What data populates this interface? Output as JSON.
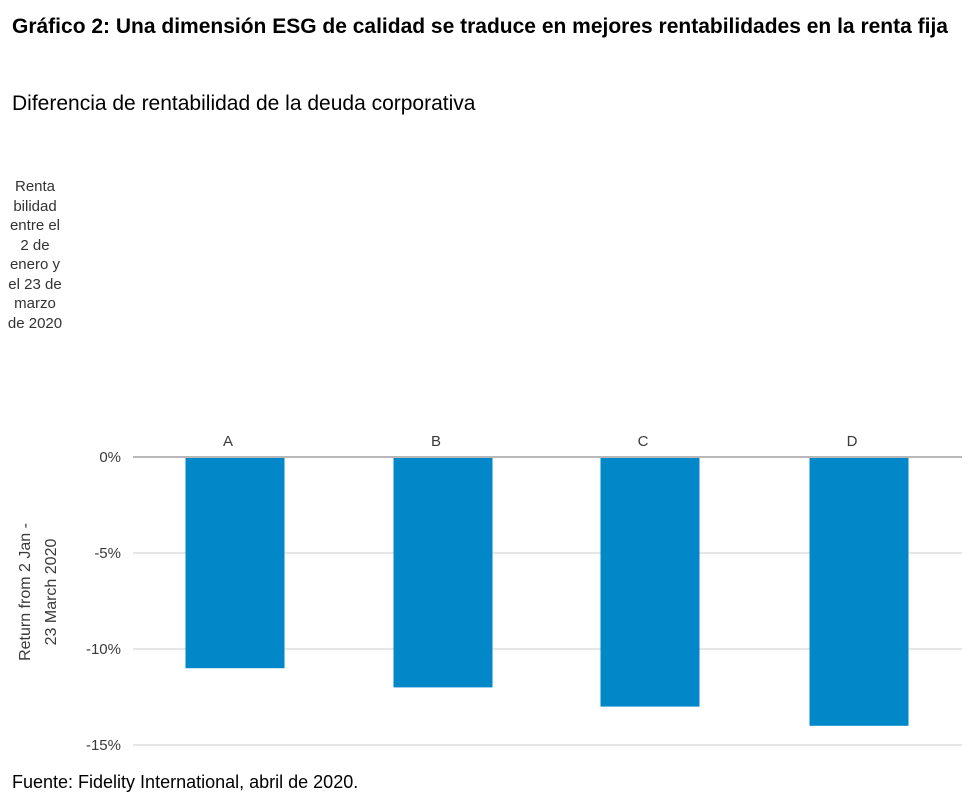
{
  "header": {
    "title": "Gráfico 2: Una dimensión ESG de calidad se traduce en mejores rentabilidades en la renta fija",
    "subtitle": "Diferencia de rentabilidad de la deuda corporativa"
  },
  "side_note": "Renta bilidad entre el 2 de enero y el 23 de marzo de 2020",
  "footer": "Fuente: Fidelity International, abril de 2020.",
  "chart_data": {
    "type": "bar",
    "title": "",
    "xlabel": "",
    "ylabel": "Return from 2 Jan - 23 March 2020",
    "ylabel_lines": [
      "Return from 2 Jan -",
      "23 March 2020"
    ],
    "categories": [
      "A",
      "B",
      "C",
      "D"
    ],
    "values": [
      -11,
      -12,
      -13,
      -14
    ],
    "unit": "%",
    "ylim": [
      -15,
      0
    ],
    "yticks": [
      0,
      -5,
      -10,
      -15
    ],
    "ytick_labels": [
      "0%",
      "-5%",
      "-10%",
      "-15%"
    ],
    "grid": true,
    "bar_color": "#0288c9",
    "grid_color": "#dddddd",
    "zero_line_color": "#b8b8b8"
  }
}
